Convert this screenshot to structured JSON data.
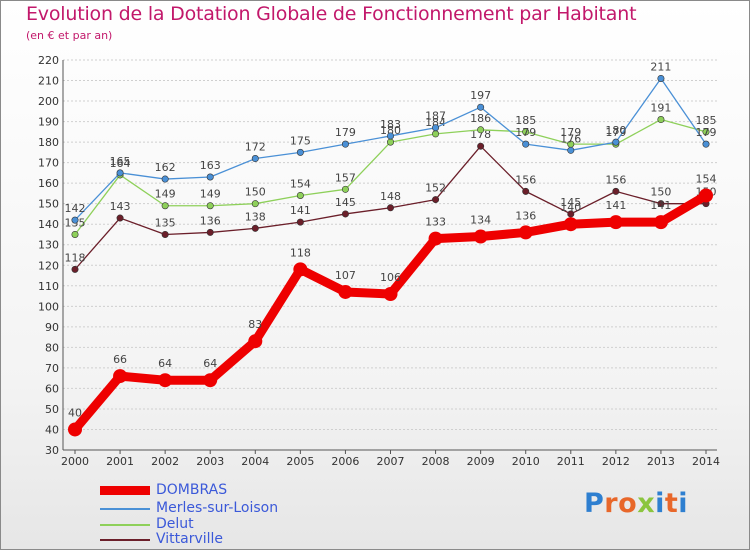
{
  "page": {
    "title": "Evolution de la Dotation Globale de Fonctionnement par Habitant",
    "subtitle": "(en € et par an)"
  },
  "logo": {
    "text": "Proxiti",
    "letter_colors": [
      "#2e7fd0",
      "#e8672a",
      "#e8672a",
      "#8bc53f",
      "#2e7fd0",
      "#e8672a",
      "#2e7fd0"
    ]
  },
  "colors": {
    "title": "#c2186b",
    "axis_tick_text": "#333333",
    "value_label_text": "#444444",
    "grid": "#cfcfcf",
    "axis": "#555555",
    "legend_text": "#3b59d9"
  },
  "chart_data": {
    "type": "line",
    "title": "Evolution de la Dotation Globale de Fonctionnement par Habitant",
    "subtitle": "(en € et par an)",
    "x": [
      2000,
      2001,
      2002,
      2003,
      2004,
      2005,
      2006,
      2007,
      2008,
      2009,
      2010,
      2011,
      2012,
      2013,
      2014
    ],
    "ylim": [
      30,
      220
    ],
    "yticks": [
      30,
      40,
      50,
      60,
      70,
      80,
      90,
      100,
      110,
      120,
      130,
      140,
      150,
      160,
      170,
      180,
      190,
      200,
      210,
      220
    ],
    "grid": "horizontal",
    "legend_position": "bottom-left",
    "series": [
      {
        "name": "Vittarville",
        "color": "#6b1f2a",
        "values": [
          118,
          143,
          135,
          136,
          138,
          141,
          145,
          148,
          152,
          178,
          156,
          145,
          156,
          150,
          150
        ]
      },
      {
        "name": "Delut",
        "color": "#8ed05a",
        "values": [
          135,
          164,
          149,
          149,
          150,
          154,
          157,
          180,
          184,
          186,
          185,
          179,
          179,
          191,
          185
        ]
      },
      {
        "name": "Merles-sur-Loison",
        "color": "#4a90d6",
        "values": [
          142,
          165,
          162,
          163,
          172,
          175,
          179,
          183,
          187,
          197,
          179,
          176,
          180,
          211,
          179
        ]
      },
      {
        "name": "DOMBRAS",
        "color": "#ee0000",
        "values": [
          40,
          66,
          64,
          64,
          83,
          118,
          107,
          106,
          133,
          134,
          136,
          140,
          141,
          141,
          154
        ]
      }
    ],
    "legend": [
      "DOMBRAS",
      "Merles-sur-Loison",
      "Delut",
      "Vittarville"
    ]
  }
}
